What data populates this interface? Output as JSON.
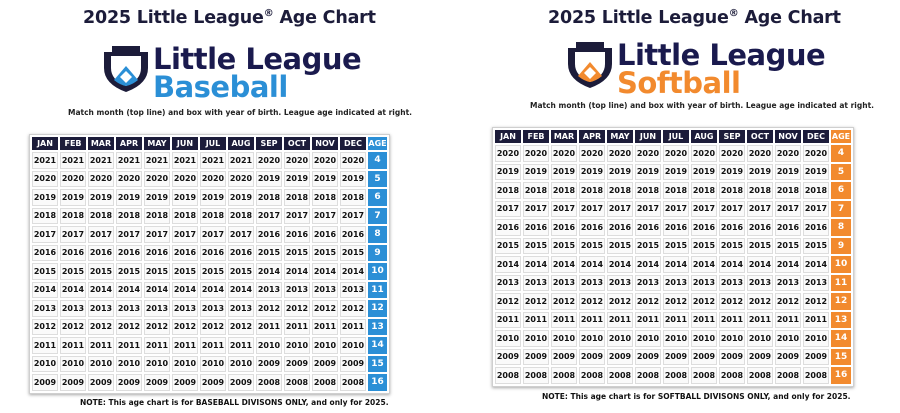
{
  "months": [
    "JAN",
    "FEB",
    "MAR",
    "APR",
    "MAY",
    "JUN",
    "JUL",
    "AUG",
    "SEP",
    "OCT",
    "NOV",
    "DEC"
  ],
  "baseball": {
    "title": "2025 Little League",
    "title_sup": "®",
    "title_end": " Age Chart",
    "logo_line1": "Little League",
    "logo_line2": "Baseball",
    "accent": "#2b8fd6",
    "instructions": "Match month (top line) and box with year of birth. League age indicated at right.",
    "age_header": "AGE",
    "rows": [
      {
        "years": [
          "2021",
          "2021",
          "2021",
          "2021",
          "2021",
          "2021",
          "2021",
          "2021",
          "2020",
          "2020",
          "2020",
          "2020"
        ],
        "age": "4"
      },
      {
        "years": [
          "2020",
          "2020",
          "2020",
          "2020",
          "2020",
          "2020",
          "2020",
          "2020",
          "2019",
          "2019",
          "2019",
          "2019"
        ],
        "age": "5"
      },
      {
        "years": [
          "2019",
          "2019",
          "2019",
          "2019",
          "2019",
          "2019",
          "2019",
          "2019",
          "2018",
          "2018",
          "2018",
          "2018"
        ],
        "age": "6"
      },
      {
        "years": [
          "2018",
          "2018",
          "2018",
          "2018",
          "2018",
          "2018",
          "2018",
          "2018",
          "2017",
          "2017",
          "2017",
          "2017"
        ],
        "age": "7"
      },
      {
        "years": [
          "2017",
          "2017",
          "2017",
          "2017",
          "2017",
          "2017",
          "2017",
          "2017",
          "2016",
          "2016",
          "2016",
          "2016"
        ],
        "age": "8"
      },
      {
        "years": [
          "2016",
          "2016",
          "2016",
          "2016",
          "2016",
          "2016",
          "2016",
          "2016",
          "2015",
          "2015",
          "2015",
          "2015"
        ],
        "age": "9"
      },
      {
        "years": [
          "2015",
          "2015",
          "2015",
          "2015",
          "2015",
          "2015",
          "2015",
          "2015",
          "2014",
          "2014",
          "2014",
          "2014"
        ],
        "age": "10"
      },
      {
        "years": [
          "2014",
          "2014",
          "2014",
          "2014",
          "2014",
          "2014",
          "2014",
          "2014",
          "2013",
          "2013",
          "2013",
          "2013"
        ],
        "age": "11"
      },
      {
        "years": [
          "2013",
          "2013",
          "2013",
          "2013",
          "2013",
          "2013",
          "2013",
          "2013",
          "2012",
          "2012",
          "2012",
          "2012"
        ],
        "age": "12"
      },
      {
        "years": [
          "2012",
          "2012",
          "2012",
          "2012",
          "2012",
          "2012",
          "2012",
          "2012",
          "2011",
          "2011",
          "2011",
          "2011"
        ],
        "age": "13"
      },
      {
        "years": [
          "2011",
          "2011",
          "2011",
          "2011",
          "2011",
          "2011",
          "2011",
          "2011",
          "2010",
          "2010",
          "2010",
          "2010"
        ],
        "age": "14"
      },
      {
        "years": [
          "2010",
          "2010",
          "2010",
          "2010",
          "2010",
          "2010",
          "2010",
          "2010",
          "2009",
          "2009",
          "2009",
          "2009"
        ],
        "age": "15"
      },
      {
        "years": [
          "2009",
          "2009",
          "2009",
          "2009",
          "2009",
          "2009",
          "2009",
          "2009",
          "2008",
          "2008",
          "2008",
          "2008"
        ],
        "age": "16"
      }
    ],
    "note": "NOTE: This age chart is for BASEBALL DIVISONS ONLY, and only for 2025."
  },
  "softball": {
    "title": "2025 Little League",
    "title_sup": "®",
    "title_end": " Age Chart",
    "logo_line1": "Little League",
    "logo_line2": "Softball",
    "accent": "#f28a2e",
    "instructions": "Match month (top line) and box with year of birth. League age indicated at right.",
    "age_header": "AGE",
    "rows": [
      {
        "years": [
          "2020",
          "2020",
          "2020",
          "2020",
          "2020",
          "2020",
          "2020",
          "2020",
          "2020",
          "2020",
          "2020",
          "2020"
        ],
        "age": "4"
      },
      {
        "years": [
          "2019",
          "2019",
          "2019",
          "2019",
          "2019",
          "2019",
          "2019",
          "2019",
          "2019",
          "2019",
          "2019",
          "2019"
        ],
        "age": "5"
      },
      {
        "years": [
          "2018",
          "2018",
          "2018",
          "2018",
          "2018",
          "2018",
          "2018",
          "2018",
          "2018",
          "2018",
          "2018",
          "2018"
        ],
        "age": "6"
      },
      {
        "years": [
          "2017",
          "2017",
          "2017",
          "2017",
          "2017",
          "2017",
          "2017",
          "2017",
          "2017",
          "2017",
          "2017",
          "2017"
        ],
        "age": "7"
      },
      {
        "years": [
          "2016",
          "2016",
          "2016",
          "2016",
          "2016",
          "2016",
          "2016",
          "2016",
          "2016",
          "2016",
          "2016",
          "2016"
        ],
        "age": "8"
      },
      {
        "years": [
          "2015",
          "2015",
          "2015",
          "2015",
          "2015",
          "2015",
          "2015",
          "2015",
          "2015",
          "2015",
          "2015",
          "2015"
        ],
        "age": "9"
      },
      {
        "years": [
          "2014",
          "2014",
          "2014",
          "2014",
          "2014",
          "2014",
          "2014",
          "2014",
          "2014",
          "2014",
          "2014",
          "2014"
        ],
        "age": "10"
      },
      {
        "years": [
          "2013",
          "2013",
          "2013",
          "2013",
          "2013",
          "2013",
          "2013",
          "2013",
          "2013",
          "2013",
          "2013",
          "2013"
        ],
        "age": "11"
      },
      {
        "years": [
          "2012",
          "2012",
          "2012",
          "2012",
          "2012",
          "2012",
          "2012",
          "2012",
          "2012",
          "2012",
          "2012",
          "2012"
        ],
        "age": "12"
      },
      {
        "years": [
          "2011",
          "2011",
          "2011",
          "2011",
          "2011",
          "2011",
          "2011",
          "2011",
          "2011",
          "2011",
          "2011",
          "2011"
        ],
        "age": "13"
      },
      {
        "years": [
          "2010",
          "2010",
          "2010",
          "2010",
          "2010",
          "2010",
          "2010",
          "2010",
          "2010",
          "2010",
          "2010",
          "2010"
        ],
        "age": "14"
      },
      {
        "years": [
          "2009",
          "2009",
          "2009",
          "2009",
          "2009",
          "2009",
          "2009",
          "2009",
          "2009",
          "2009",
          "2009",
          "2009"
        ],
        "age": "15"
      },
      {
        "years": [
          "2008",
          "2008",
          "2008",
          "2008",
          "2008",
          "2008",
          "2008",
          "2008",
          "2008",
          "2008",
          "2008",
          "2008"
        ],
        "age": "16"
      }
    ],
    "note": "NOTE: This age chart is for SOFTBALL DIVISONS ONLY, and only for 2025."
  }
}
